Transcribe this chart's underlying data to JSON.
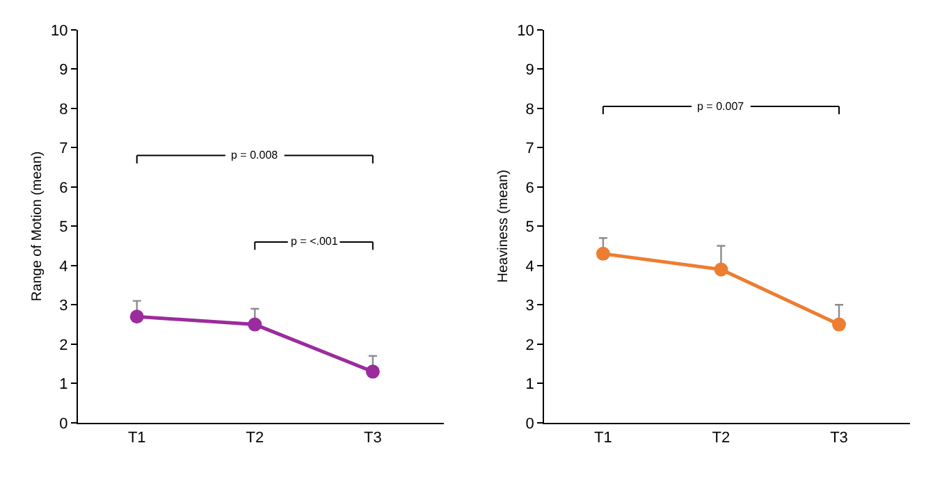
{
  "chart_data": [
    {
      "type": "line",
      "categories": [
        "T1",
        "T2",
        "T3"
      ],
      "ylabel": "Range of Motion (mean)",
      "ylim": [
        0,
        10
      ],
      "yticks": [
        0,
        1,
        2,
        3,
        4,
        5,
        6,
        7,
        8,
        9,
        10
      ],
      "marker": "circle",
      "line_style": "solid",
      "series": [
        {
          "color": "#9b2c9d",
          "values": [
            2.7,
            2.5,
            1.3
          ],
          "errors": [
            [
              2.7,
              3.1
            ],
            [
              2.5,
              2.9
            ],
            [
              1.3,
              1.7
            ]
          ]
        }
      ],
      "annotations": [
        "p = 0.008",
        "p = <.001"
      ]
    },
    {
      "type": "line",
      "categories": [
        "T1",
        "T2",
        "T3"
      ],
      "ylabel": "Heaviness (mean)",
      "ylim": [
        0,
        10
      ],
      "yticks": [
        0,
        1,
        2,
        3,
        4,
        5,
        6,
        7,
        8,
        9,
        10
      ],
      "marker": "circle",
      "line_style": "solid",
      "series": [
        {
          "color": "#ed7d31",
          "values": [
            4.3,
            3.9,
            2.5
          ],
          "errors": [
            [
              4.3,
              4.7
            ],
            [
              3.9,
              4.5
            ],
            [
              2.5,
              3.0
            ]
          ]
        }
      ],
      "annotations": [
        "p = 0.007"
      ]
    }
  ]
}
